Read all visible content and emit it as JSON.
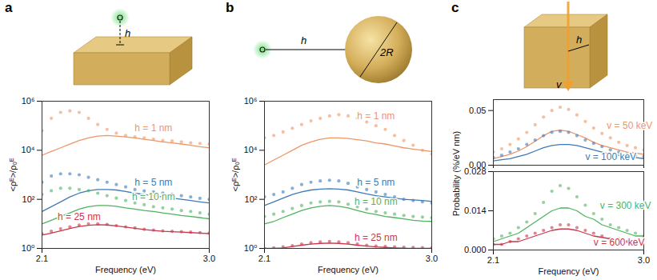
{
  "chart_data": [
    {
      "panel": "a",
      "type": "line",
      "schematic_labels": [
        "h"
      ],
      "xlabel": "Frequency (eV)",
      "ylabel": "<ρᴱ>/ρ₀ᴱ",
      "log": "y",
      "xlim": [
        2.1,
        3.0
      ],
      "ylim": [
        1,
        1000000
      ],
      "xticks": [
        2.1,
        {
          "value": 3.0,
          "label": "3.0"
        }
      ],
      "yticks": [
        {
          "value": 1,
          "label": "10⁰"
        },
        {
          "value": 100,
          "label": "10²"
        },
        {
          "value": 10000,
          "label": "10⁴"
        },
        {
          "value": 1000000,
          "label": "10⁶"
        }
      ],
      "x": [
        2.1,
        2.15,
        2.2,
        2.25,
        2.3,
        2.35,
        2.4,
        2.45,
        2.5,
        2.55,
        2.6,
        2.65,
        2.7,
        2.75,
        2.8,
        2.85,
        2.9,
        2.95,
        3.0
      ],
      "series": [
        {
          "name": "h = 1 nm",
          "color": "#ee9664",
          "marker": "circle",
          "values": [
            63000,
            200000,
            350000,
            400000,
            350000,
            200000,
            112000,
            71000,
            50000,
            40000,
            35000,
            32000,
            28000,
            25000,
            24000,
            22000,
            20000,
            19000,
            18000
          ],
          "theory": [
            6300,
            8900,
            12600,
            17800,
            25000,
            32000,
            38000,
            40000,
            38000,
            35000,
            32000,
            28000,
            25000,
            22000,
            20000,
            18000,
            16000,
            14000,
            12600
          ]
        },
        {
          "name": "h = 5 nm",
          "color": "#3d7ab8",
          "marker": "circle",
          "values": [
            500,
            890,
            1100,
            1100,
            1000,
            790,
            630,
            500,
            400,
            320,
            250,
            220,
            200,
            180,
            160,
            140,
            125,
            110,
            100
          ],
          "theory": [
            32,
            50,
            79,
            126,
            178,
            224,
            251,
            251,
            240,
            209,
            178,
            158,
            141,
            126,
            112,
            100,
            89,
            79,
            71
          ]
        },
        {
          "name": "h = 10 nm",
          "color": "#4fb35e",
          "marker": "circle",
          "values": [
            158,
            224,
            282,
            282,
            251,
            224,
            178,
            141,
            112,
            89,
            71,
            60,
            50,
            45,
            40,
            35,
            32,
            28,
            25
          ],
          "theory": [
            10,
            14,
            20,
            28,
            40,
            50,
            56,
            56,
            52,
            45,
            40,
            35,
            32,
            28,
            25,
            22,
            20,
            18,
            16
          ]
        },
        {
          "name": "h = 25 nm",
          "color": "#c8374a",
          "marker": "circle",
          "values": [
            4.0,
            5.0,
            6.3,
            7.6,
            8.9,
            10,
            10,
            9.5,
            8.5,
            7.6,
            6.8,
            6.0,
            5.6,
            5.2,
            5.0,
            4.8,
            4.6,
            4.4,
            4.2
          ],
          "theory": [
            3.5,
            4.2,
            5.2,
            6.5,
            7.8,
            8.8,
            9.2,
            9.0,
            8.2,
            7.4,
            6.6,
            5.9,
            5.4,
            5.0,
            4.8,
            4.6,
            4.4,
            4.2,
            4.0
          ]
        }
      ]
    },
    {
      "panel": "b",
      "type": "line",
      "schematic_labels": [
        "h",
        "2R"
      ],
      "xlabel": "Frequency (eV)",
      "ylabel": "<ρᴱ>/ρ₀ᴱ",
      "log": "y",
      "xlim": [
        2.1,
        3.0
      ],
      "ylim": [
        1,
        1000000
      ],
      "xticks": [
        2.1,
        {
          "value": 3.0,
          "label": "3.0"
        }
      ],
      "yticks": [
        {
          "value": 1,
          "label": "10⁰"
        },
        {
          "value": 100,
          "label": "10²"
        },
        {
          "value": 10000,
          "label": "10⁴"
        },
        {
          "value": 1000000,
          "label": "10⁶"
        }
      ],
      "x": [
        2.1,
        2.15,
        2.2,
        2.25,
        2.3,
        2.35,
        2.4,
        2.45,
        2.5,
        2.55,
        2.6,
        2.65,
        2.7,
        2.75,
        2.8,
        2.85,
        2.9,
        2.95,
        3.0
      ],
      "series": [
        {
          "name": "h = 1 nm",
          "color": "#ee9664",
          "marker": "circle",
          "values": [
            32000,
            40000,
            56000,
            79000,
            112000,
            158000,
            200000,
            251000,
            282000,
            251000,
            200000,
            141000,
            100000,
            71000,
            40000,
            25000,
            16000,
            10000,
            7000
          ],
          "theory": [
            2500,
            4000,
            6300,
            10000,
            16000,
            22000,
            28000,
            32000,
            32000,
            30000,
            27000,
            24000,
            20000,
            18000,
            15000,
            12600,
            11200,
            10000,
            8900
          ]
        },
        {
          "name": "h = 5 nm",
          "color": "#3d7ab8",
          "marker": "circle",
          "values": [
            126,
            158,
            200,
            282,
            400,
            500,
            560,
            600,
            560,
            450,
            320,
            250,
            200,
            158,
            126,
            100,
            89,
            79,
            71
          ],
          "theory": [
            56,
            79,
            112,
            158,
            200,
            240,
            263,
            270,
            263,
            240,
            200,
            166,
            141,
            126,
            112,
            100,
            95,
            89,
            83
          ]
        },
        {
          "name": "h = 10 nm",
          "color": "#4fb35e",
          "marker": "circle",
          "values": [
            20,
            25,
            32,
            42,
            56,
            71,
            79,
            83,
            79,
            63,
            50,
            40,
            32,
            28,
            25,
            22,
            20,
            19,
            18
          ],
          "theory": [
            10,
            12.6,
            18,
            25,
            35,
            45,
            52,
            56,
            52,
            45,
            35,
            28,
            24,
            20,
            18,
            16,
            14,
            13,
            12.6
          ]
        },
        {
          "name": "h = 25 nm",
          "color": "#c8374a",
          "marker": "circle",
          "values": [
            1.0,
            1.05,
            1.15,
            1.3,
            1.5,
            1.7,
            1.85,
            1.9,
            1.85,
            1.7,
            1.5,
            1.35,
            1.25,
            1.2,
            1.15,
            1.12,
            1.1,
            1.08,
            1.05
          ],
          "theory": [
            1.0,
            1.0,
            1.05,
            1.2,
            1.35,
            1.5,
            1.6,
            1.65,
            1.6,
            1.5,
            1.35,
            1.25,
            1.15,
            1.1,
            1.05,
            1.02,
            1.0,
            1.0,
            1.0
          ]
        }
      ]
    },
    {
      "panel": "c",
      "type": "line",
      "schematic_labels": [
        "h",
        "v"
      ],
      "ylabel": "Probability (%/eV nm)",
      "tick_labels": "y",
      "xlim": [
        2.1,
        3.0
      ],
      "ylim": [
        0,
        0.06
      ],
      "xticks": [
        2.1,
        3.0
      ],
      "yticks": [
        {
          "value": 0,
          "label": "0.00"
        },
        {
          "value": 0.05,
          "label": "0.05"
        }
      ],
      "x": [
        2.1,
        2.15,
        2.2,
        2.25,
        2.3,
        2.35,
        2.4,
        2.45,
        2.5,
        2.55,
        2.6,
        2.65,
        2.7,
        2.75,
        2.8,
        2.85,
        2.9,
        2.95,
        3.0
      ],
      "series": [
        {
          "name": "v = 50 keV",
          "color": "#ee9664",
          "marker": "circle",
          "values": [
            0.012,
            0.015,
            0.019,
            0.024,
            0.03,
            0.037,
            0.044,
            0.05,
            0.053,
            0.051,
            0.046,
            0.04,
            0.034,
            0.029,
            0.025,
            0.021,
            0.018,
            0.016,
            0.014
          ],
          "theory": [
            0.006,
            0.008,
            0.01,
            0.013,
            0.017,
            0.022,
            0.027,
            0.031,
            0.032,
            0.031,
            0.028,
            0.025,
            0.021,
            0.018,
            0.016,
            0.014,
            0.012,
            0.011,
            0.01
          ]
        },
        {
          "name": "v = 100 keV",
          "color": "#3d7ab8",
          "marker": "circle",
          "values": [
            0.007,
            0.009,
            0.012,
            0.015,
            0.019,
            0.023,
            0.027,
            0.03,
            0.031,
            0.03,
            0.027,
            0.023,
            0.02,
            0.017,
            0.014,
            0.012,
            0.01,
            0.009,
            0.008
          ],
          "theory": [
            0.004,
            0.005,
            0.006,
            0.008,
            0.01,
            0.013,
            0.016,
            0.018,
            0.019,
            0.019,
            0.018,
            0.016,
            0.014,
            0.012,
            0.01,
            0.009,
            0.008,
            0.007,
            0.006
          ]
        }
      ]
    },
    {
      "type": "line",
      "xlabel": "Frequency (eV)",
      "xlim": [
        2.1,
        3.0
      ],
      "ylim": [
        0,
        0.028
      ],
      "xticks": [
        2.1,
        {
          "value": 3.0,
          "label": "3.0"
        }
      ],
      "yticks": [
        {
          "value": 0,
          "label": "0.000"
        },
        {
          "value": 0.014,
          "label": "0.014"
        },
        {
          "value": 0.028,
          "label": "0.028"
        }
      ],
      "x": [
        2.1,
        2.15,
        2.2,
        2.25,
        2.3,
        2.35,
        2.4,
        2.45,
        2.5,
        2.55,
        2.6,
        2.65,
        2.7,
        2.75,
        2.8,
        2.85,
        2.9,
        2.95,
        3.0
      ],
      "series": [
        {
          "name": "v = 300 keV",
          "color": "#4fb35e",
          "marker": "circle",
          "values": [
            0.004,
            0.005,
            0.006,
            0.008,
            0.01,
            0.013,
            0.017,
            0.021,
            0.023,
            0.022,
            0.019,
            0.016,
            0.013,
            0.011,
            0.009,
            0.008,
            0.007,
            0.006,
            0.005
          ],
          "theory": [
            0.003,
            0.004,
            0.005,
            0.006,
            0.008,
            0.01,
            0.012,
            0.014,
            0.015,
            0.015,
            0.014,
            0.012,
            0.011,
            0.009,
            0.008,
            0.007,
            0.006,
            0.005,
            0.005
          ]
        },
        {
          "name": "v = 600 keV",
          "color": "#c8374a",
          "marker": "circle",
          "values": [
            0.002,
            0.002,
            0.003,
            0.004,
            0.005,
            0.006,
            0.007,
            0.008,
            0.009,
            0.009,
            0.008,
            0.007,
            0.006,
            0.005,
            0.004,
            0.004,
            0.003,
            0.003,
            0.003
          ],
          "theory": [
            0.002,
            0.002,
            0.003,
            0.003,
            0.004,
            0.005,
            0.006,
            0.007,
            0.0075,
            0.0075,
            0.007,
            0.006,
            0.005,
            0.0045,
            0.004,
            0.0035,
            0.003,
            0.003,
            0.0025
          ]
        }
      ]
    }
  ]
}
